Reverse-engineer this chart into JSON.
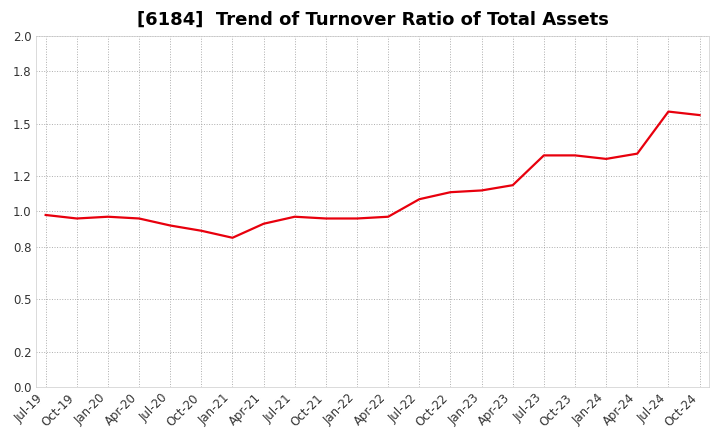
{
  "title": "[6184]  Trend of Turnover Ratio of Total Assets",
  "x_labels": [
    "Jul-19",
    "Oct-19",
    "Jan-20",
    "Apr-20",
    "Jul-20",
    "Oct-20",
    "Jan-21",
    "Apr-21",
    "Jul-21",
    "Oct-21",
    "Jan-22",
    "Apr-22",
    "Jul-22",
    "Oct-22",
    "Jan-23",
    "Apr-23",
    "Jul-23",
    "Oct-23",
    "Jan-24",
    "Apr-24",
    "Jul-24",
    "Oct-24"
  ],
  "y_values": [
    0.98,
    0.96,
    0.97,
    0.96,
    0.92,
    0.89,
    0.85,
    0.93,
    0.97,
    0.96,
    0.96,
    0.97,
    1.07,
    1.11,
    1.12,
    1.15,
    1.32,
    1.32,
    1.3,
    1.33,
    1.57,
    1.55
  ],
  "line_color": "#e8000d",
  "line_width": 1.6,
  "ylim": [
    0.0,
    2.0
  ],
  "yticks": [
    0.0,
    0.2,
    0.5,
    0.8,
    1.0,
    1.2,
    1.5,
    1.8,
    2.0
  ],
  "background_color": "#ffffff",
  "grid_color": "#999999",
  "title_fontsize": 13,
  "tick_fontsize": 8.5
}
